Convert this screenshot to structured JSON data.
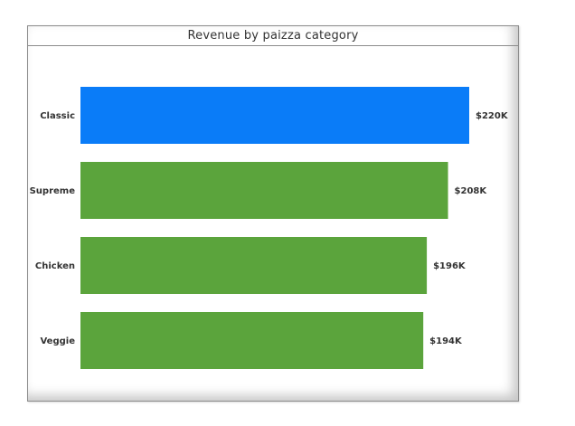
{
  "chart_data": {
    "type": "bar",
    "orientation": "horizontal",
    "title": "Revenue by paizza category",
    "categories": [
      "Classic",
      "Supreme",
      "Chicken",
      "Veggie"
    ],
    "values": [
      220,
      208,
      196,
      194
    ],
    "value_labels": [
      "$220K",
      "$208K",
      "$196K",
      "$194K"
    ],
    "units": "K",
    "xlim": [
      0,
      220
    ],
    "grid": false,
    "legend": "none",
    "colors": {
      "highlight": "#0a7cf8",
      "default": "#5ba43c"
    },
    "highlight_index": 0
  }
}
